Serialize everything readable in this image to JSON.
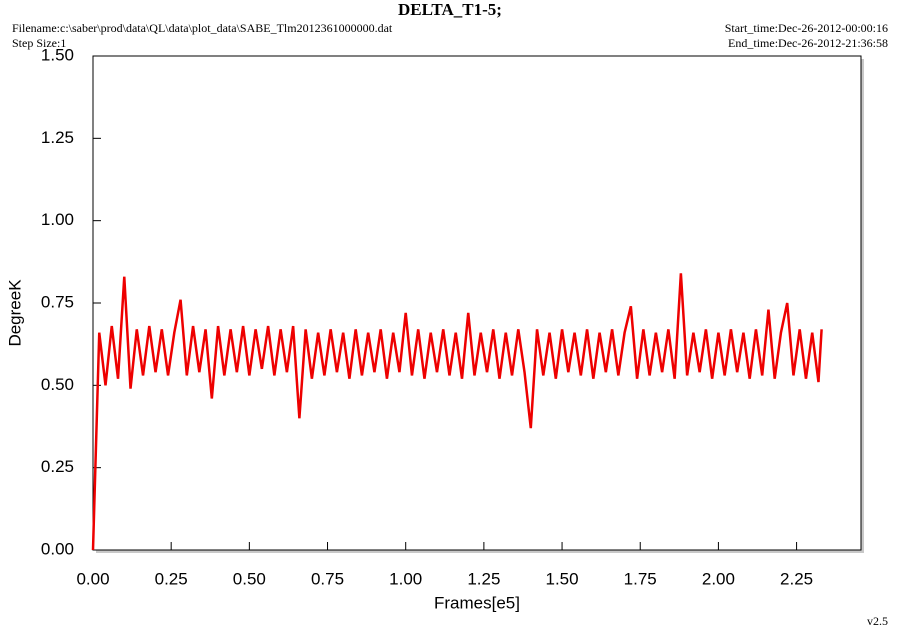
{
  "chart_data": {
    "type": "line",
    "title": "DELTA_T1-5;",
    "filename": "Filename:c:\\saber\\prod\\data\\QL\\data\\plot_data\\SABE_Tlm2012361000000.dat",
    "step_size": "Step Size:1",
    "start_time": "Start_time:Dec-26-2012-00:00:16",
    "end_time": "End_time:Dec-26-2012-21:36:58",
    "version": "v2.5",
    "xlabel": "Frames[e5]",
    "ylabel": "DegreeK",
    "xlim": [
      0,
      2.456
    ],
    "ylim": [
      0,
      1.5
    ],
    "xticks": [
      {
        "value": 0,
        "label": "0.00"
      },
      {
        "value": 0.25,
        "label": "0.25"
      },
      {
        "value": 0.5,
        "label": "0.50"
      },
      {
        "value": 0.75,
        "label": "0.75"
      },
      {
        "value": 1,
        "label": "1.00"
      },
      {
        "value": 1.25,
        "label": "1.25"
      },
      {
        "value": 1.5,
        "label": "1.50"
      },
      {
        "value": 1.75,
        "label": "1.75"
      },
      {
        "value": 2,
        "label": "2.00"
      },
      {
        "value": 2.25,
        "label": "2.25"
      }
    ],
    "yticks": [
      {
        "value": 0,
        "label": "0.00"
      },
      {
        "value": 0.25,
        "label": "0.25"
      },
      {
        "value": 0.5,
        "label": "0.50"
      },
      {
        "value": 0.75,
        "label": "0.75"
      },
      {
        "value": 1,
        "label": "1.00"
      },
      {
        "value": 1.25,
        "label": "1.25"
      },
      {
        "value": 1.5,
        "label": "1.50"
      }
    ],
    "x": [
      0,
      0.02,
      0.04,
      0.06,
      0.08,
      0.1,
      0.12,
      0.14,
      0.16,
      0.18,
      0.2,
      0.22,
      0.24,
      0.26,
      0.28,
      0.3,
      0.32,
      0.34,
      0.36,
      0.38,
      0.4,
      0.42,
      0.44,
      0.46,
      0.48,
      0.5,
      0.52,
      0.54,
      0.56,
      0.58,
      0.6,
      0.62,
      0.64,
      0.66,
      0.68,
      0.7,
      0.72,
      0.74,
      0.76,
      0.78,
      0.8,
      0.82,
      0.84,
      0.86,
      0.88,
      0.9,
      0.92,
      0.94,
      0.96,
      0.98,
      1.0,
      1.02,
      1.04,
      1.06,
      1.08,
      1.1,
      1.12,
      1.14,
      1.16,
      1.18,
      1.2,
      1.22,
      1.24,
      1.26,
      1.28,
      1.3,
      1.32,
      1.34,
      1.36,
      1.38,
      1.4,
      1.42,
      1.44,
      1.46,
      1.48,
      1.5,
      1.52,
      1.54,
      1.56,
      1.58,
      1.6,
      1.62,
      1.64,
      1.66,
      1.68,
      1.7,
      1.72,
      1.74,
      1.76,
      1.78,
      1.8,
      1.82,
      1.84,
      1.86,
      1.88,
      1.9,
      1.92,
      1.94,
      1.96,
      1.98,
      2.0,
      2.02,
      2.04,
      2.06,
      2.08,
      2.1,
      2.12,
      2.14,
      2.16,
      2.18,
      2.2,
      2.22,
      2.24,
      2.26,
      2.28,
      2.3,
      2.32,
      2.33
    ],
    "series": [
      {
        "color": "#ee0000",
        "values": [
          0,
          0.66,
          0.5,
          0.68,
          0.52,
          0.83,
          0.49,
          0.67,
          0.53,
          0.68,
          0.54,
          0.67,
          0.53,
          0.66,
          0.76,
          0.53,
          0.68,
          0.54,
          0.67,
          0.46,
          0.68,
          0.53,
          0.67,
          0.54,
          0.68,
          0.53,
          0.67,
          0.55,
          0.68,
          0.53,
          0.67,
          0.54,
          0.68,
          0.4,
          0.67,
          0.52,
          0.66,
          0.53,
          0.67,
          0.54,
          0.66,
          0.52,
          0.67,
          0.53,
          0.66,
          0.54,
          0.67,
          0.52,
          0.66,
          0.54,
          0.72,
          0.53,
          0.67,
          0.52,
          0.66,
          0.54,
          0.67,
          0.53,
          0.66,
          0.52,
          0.72,
          0.53,
          0.66,
          0.54,
          0.67,
          0.52,
          0.66,
          0.53,
          0.67,
          0.54,
          0.37,
          0.67,
          0.53,
          0.66,
          0.52,
          0.67,
          0.54,
          0.66,
          0.53,
          0.67,
          0.52,
          0.66,
          0.54,
          0.67,
          0.53,
          0.66,
          0.74,
          0.52,
          0.67,
          0.53,
          0.66,
          0.54,
          0.67,
          0.52,
          0.84,
          0.53,
          0.66,
          0.54,
          0.67,
          0.52,
          0.66,
          0.53,
          0.67,
          0.54,
          0.66,
          0.52,
          0.67,
          0.53,
          0.73,
          0.52,
          0.66,
          0.75,
          0.53,
          0.67,
          0.52,
          0.66,
          0.51,
          0.67
        ]
      }
    ]
  }
}
